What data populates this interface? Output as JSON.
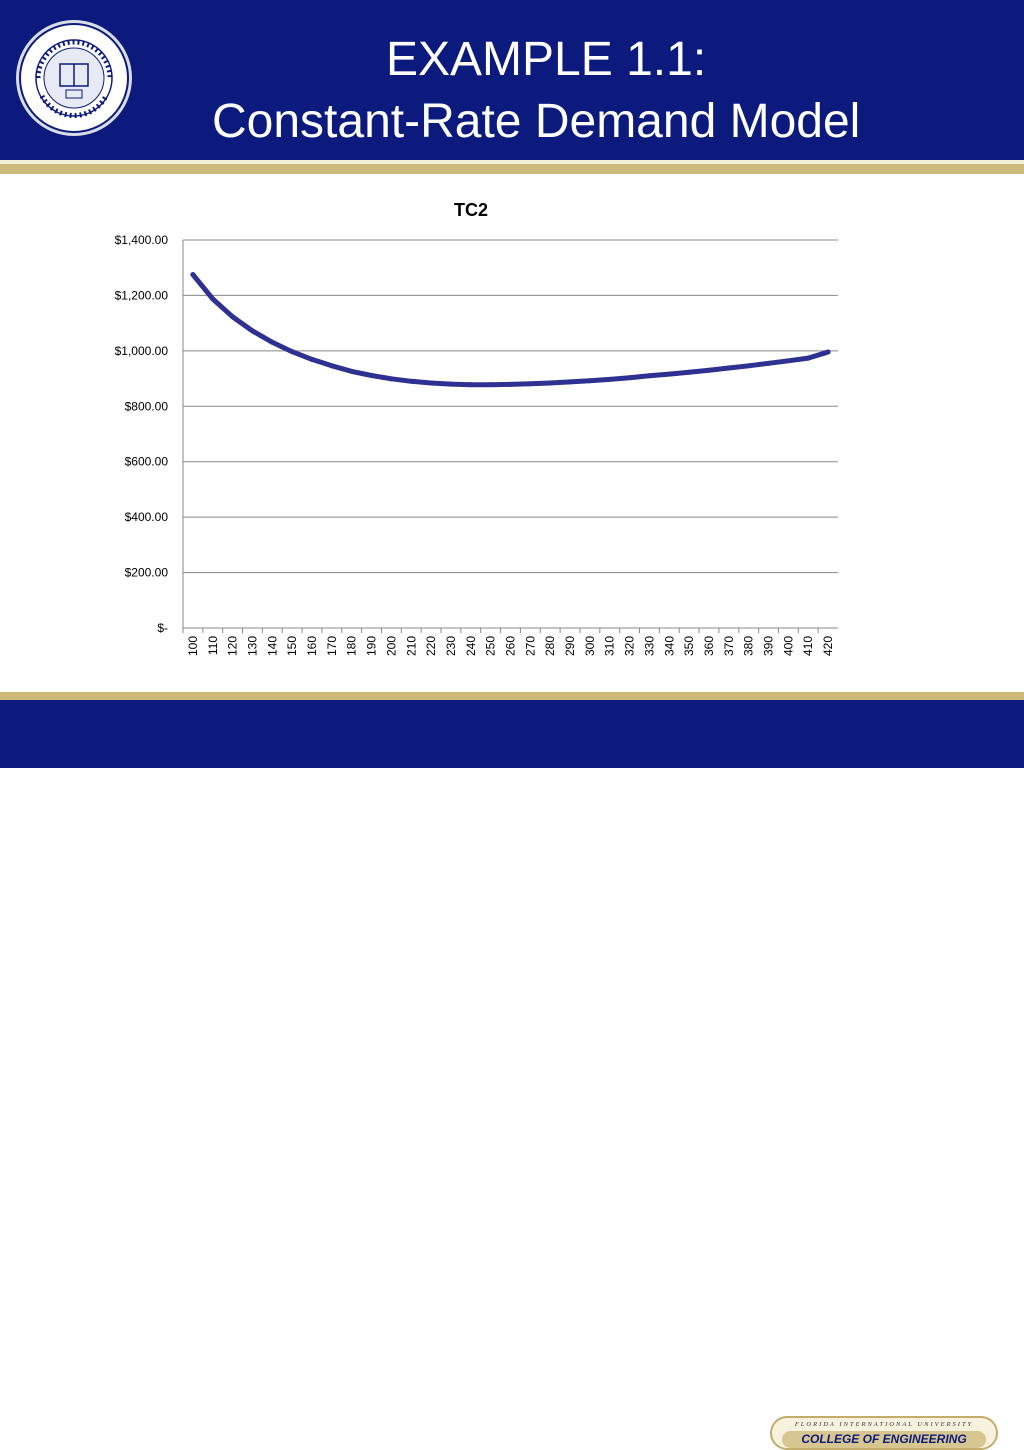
{
  "slide": {
    "title_line1": "EXAMPLE 1.1:",
    "title_line2": "Constant-Rate Demand Model"
  },
  "footer": {
    "university": "FLORIDA INTERNATIONAL UNIVERSITY",
    "college": "COLLEGE OF ENGINEERING"
  },
  "colors": {
    "header_bg": "#0b1a7c",
    "gold": "#cdb97a",
    "series": "#2e3192",
    "grid": "#888888"
  },
  "chart_data": {
    "type": "line",
    "title": "TC2",
    "xlabel": "",
    "ylabel": "",
    "ylim": [
      0,
      1400
    ],
    "yticks": [
      0,
      200,
      400,
      600,
      800,
      1000,
      1200,
      1400
    ],
    "ytick_labels": [
      "$-",
      "$200.00",
      "$400.00",
      "$600.00",
      "$800.00",
      "$1,000.00",
      "$1,200.00",
      "$1,400.00"
    ],
    "x": [
      100,
      110,
      120,
      130,
      140,
      150,
      160,
      170,
      180,
      190,
      200,
      210,
      220,
      230,
      240,
      250,
      260,
      270,
      280,
      290,
      300,
      310,
      320,
      330,
      340,
      350,
      360,
      370,
      380,
      390,
      400,
      410,
      420
    ],
    "series": [
      {
        "values": [
          1275,
          1187,
          1123,
          1072,
          1031,
          997,
          969,
          946,
          926,
          911,
          899,
          890,
          884,
          880,
          878,
          878,
          879,
          881,
          884,
          888,
          892,
          897,
          903,
          910,
          916,
          923,
          930,
          938,
          946,
          955,
          964,
          974,
          996
        ]
      }
    ],
    "grid": true,
    "legend": "none"
  }
}
